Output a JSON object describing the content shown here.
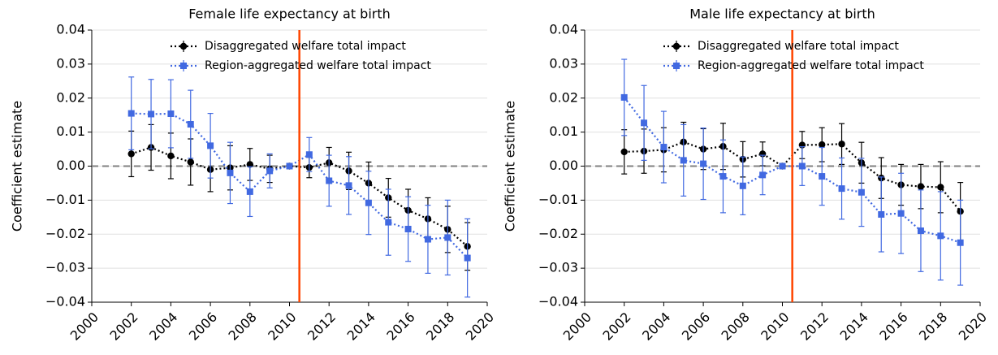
{
  "chart_data": [
    {
      "type": "errorbar",
      "title": "Female life expectancy at birth",
      "ylabel": "Coefficient estimate",
      "x": [
        2002,
        2003,
        2004,
        2005,
        2006,
        2007,
        2008,
        2009,
        2010,
        2011,
        2012,
        2013,
        2014,
        2015,
        2016,
        2017,
        2018,
        2019
      ],
      "series": [
        {
          "name": "Disaggregated welfare total impact",
          "color": "#000000",
          "marker": "circle",
          "values": [
            0.0036,
            0.0055,
            0.003,
            0.0012,
            -0.001,
            -0.0005,
            0.0005,
            -0.0008,
            0,
            -0.0004,
            0.001,
            -0.0014,
            -0.005,
            -0.0093,
            -0.013,
            -0.0155,
            -0.0186,
            -0.0236
          ],
          "errors": [
            0.0067,
            0.0067,
            0.0067,
            0.0068,
            0.0065,
            0.0065,
            0.0047,
            0.004,
            0,
            0.003,
            0.0045,
            0.0055,
            0.0062,
            0.0057,
            0.0062,
            0.0062,
            0.0068,
            0.007
          ]
        },
        {
          "name": "Region-aggregated welfare total impact",
          "color": "#4169e1",
          "marker": "square",
          "values": [
            0.0155,
            0.0153,
            0.0154,
            0.0123,
            0.006,
            -0.002,
            -0.0075,
            -0.0014,
            0,
            0.0034,
            -0.0043,
            -0.0057,
            -0.0108,
            -0.0165,
            -0.0185,
            -0.0215,
            -0.021,
            -0.027
          ],
          "errors": [
            0.0107,
            0.0102,
            0.01,
            0.01,
            0.0095,
            0.009,
            0.0073,
            0.005,
            0,
            0.005,
            0.0075,
            0.0085,
            0.0093,
            0.0097,
            0.0095,
            0.01,
            0.011,
            0.0115
          ]
        }
      ],
      "xlim": [
        2000,
        2020
      ],
      "xticks": [
        2000,
        2002,
        2004,
        2006,
        2008,
        2010,
        2012,
        2014,
        2016,
        2018,
        2020
      ],
      "ylim": [
        -0.04,
        0.04
      ],
      "yticks": [
        {
          "value": -0.04,
          "label": "−0.04"
        },
        {
          "value": -0.03,
          "label": "−0.03"
        },
        {
          "value": -0.02,
          "label": "−0.02"
        },
        {
          "value": -0.01,
          "label": "−0.01"
        },
        {
          "value": 0,
          "label": "0.00"
        },
        0.01,
        0.02,
        0.03,
        0.04
      ],
      "vline": 2010.5,
      "vline_color": "#ff4500",
      "hline": 0,
      "hline_color": "#808080",
      "grid": true,
      "legend": "upper right"
    },
    {
      "type": "errorbar",
      "title": "Male life expectancy at birth",
      "ylabel": "Coefficient estimate",
      "x": [
        2002,
        2003,
        2004,
        2005,
        2006,
        2007,
        2008,
        2009,
        2010,
        2011,
        2012,
        2013,
        2014,
        2015,
        2016,
        2017,
        2018,
        2019
      ],
      "series": [
        {
          "name": "Disaggregated welfare total impact",
          "color": "#000000",
          "marker": "circle",
          "values": [
            0.0042,
            0.0044,
            0.0048,
            0.0071,
            0.005,
            0.0058,
            0.002,
            0.0036,
            0,
            0.0062,
            0.0063,
            0.0065,
            0.001,
            -0.0035,
            -0.0055,
            -0.006,
            -0.0062,
            -0.0133
          ],
          "errors": [
            0.0065,
            0.0065,
            0.0065,
            0.0058,
            0.006,
            0.0068,
            0.0052,
            0.0035,
            0,
            0.004,
            0.005,
            0.006,
            0.006,
            0.006,
            0.006,
            0.0065,
            0.0075,
            0.0085
          ]
        },
        {
          "name": "Region-aggregated welfare total impact",
          "color": "#4169e1",
          "marker": "square",
          "values": [
            0.0202,
            0.0127,
            0.0056,
            0.0017,
            0.0007,
            -0.003,
            -0.0058,
            -0.0026,
            0,
            0,
            -0.003,
            -0.0066,
            -0.0077,
            -0.0142,
            -0.0139,
            -0.019,
            -0.0205,
            -0.0225
          ],
          "errors": [
            0.0112,
            0.011,
            0.0105,
            0.0105,
            0.0105,
            0.0107,
            0.0085,
            0.0058,
            0,
            0.0057,
            0.0085,
            0.009,
            0.01,
            0.011,
            0.0118,
            0.012,
            0.013,
            0.0125
          ]
        }
      ],
      "xlim": [
        2000,
        2020
      ],
      "xticks": [
        2000,
        2002,
        2004,
        2006,
        2008,
        2010,
        2012,
        2014,
        2016,
        2018,
        2020
      ],
      "ylim": [
        -0.04,
        0.04
      ],
      "yticks": [
        {
          "value": -0.04,
          "label": "−0.04"
        },
        {
          "value": -0.03,
          "label": "−0.03"
        },
        {
          "value": -0.02,
          "label": "−0.02"
        },
        {
          "value": -0.01,
          "label": "−0.01"
        },
        {
          "value": 0,
          "label": "0.00"
        },
        0.01,
        0.02,
        0.03,
        0.04
      ],
      "vline": 2010.5,
      "vline_color": "#ff4500",
      "hline": 0,
      "hline_color": "#808080",
      "grid": true,
      "legend": "upper right"
    }
  ]
}
